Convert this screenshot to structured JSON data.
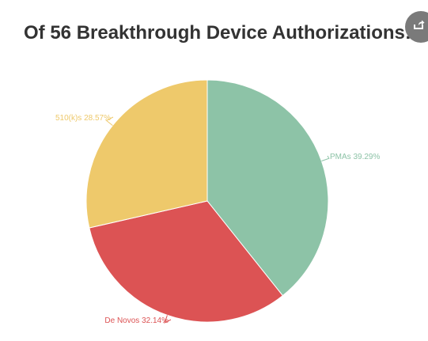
{
  "header": {
    "title": "Of 56 Breakthrough Device Authorizations:",
    "share_icon": "share-icon"
  },
  "chart_data": {
    "type": "pie",
    "title": "Of 56 Breakthrough Device Authorizations:",
    "slices": [
      {
        "label": "PMAs",
        "value": 39.29,
        "display": "PMAs 39.29%",
        "color": "#8dc3a7"
      },
      {
        "label": "De Novos",
        "value": 32.14,
        "display": "De Novos 32.14%",
        "color": "#dc5354"
      },
      {
        "label": "510(k)s",
        "value": 28.57,
        "display": "510(k)s 28.57%",
        "color": "#eec96b"
      }
    ]
  }
}
